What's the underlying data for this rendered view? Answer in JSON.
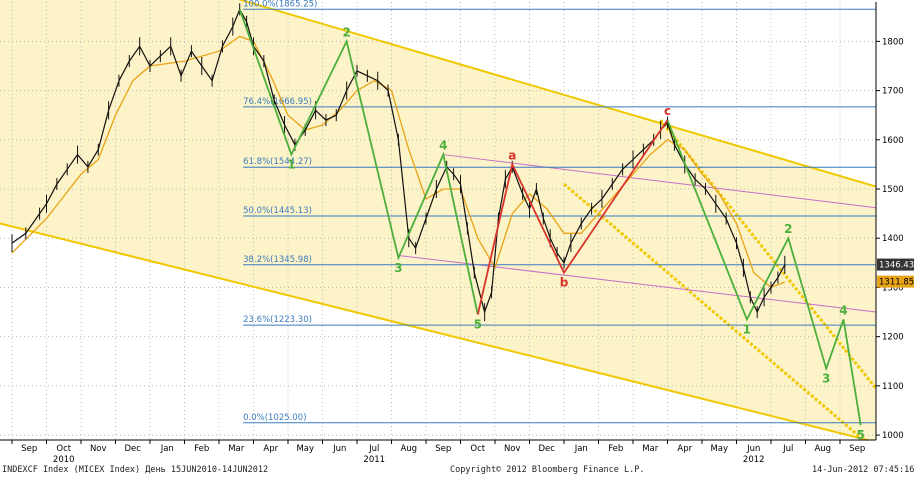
{
  "chart_data": {
    "type": "line",
    "ylim": [
      990,
      1880
    ],
    "y_ticks": [
      1000,
      1100,
      1200,
      1300,
      1400,
      1500,
      1600,
      1700,
      1800
    ],
    "months": [
      "Sep",
      "Oct",
      "Nov",
      "Dec",
      "Jan",
      "Feb",
      "Mar",
      "Apr",
      "May",
      "Jun",
      "Jul",
      "Aug",
      "Sep",
      "Oct",
      "Nov",
      "Dec",
      "Jan",
      "Feb",
      "Mar",
      "Apr",
      "May",
      "Jun",
      "Jul",
      "Aug",
      "Sep"
    ],
    "years": [
      {
        "label": "2010",
        "month_index": 1
      },
      {
        "label": "2011",
        "month_index": 10
      },
      {
        "label": "2012",
        "month_index": 21
      }
    ],
    "fib_levels": [
      {
        "label": "100.0%(1865.25)",
        "value": 1865.25
      },
      {
        "label": "76.4%(1666.95)",
        "value": 1666.95
      },
      {
        "label": "61.8%(1544.27)",
        "value": 1544.27
      },
      {
        "label": "50.0%(1445.13)",
        "value": 1445.13
      },
      {
        "label": "38.2%(1345.98)",
        "value": 1345.98
      },
      {
        "label": "23.6%(1223.30)",
        "value": 1223.3
      },
      {
        "label": "0.0%(1025.00)",
        "value": 1025.0
      }
    ],
    "price": [
      [
        0,
        1390
      ],
      [
        0.4,
        1410
      ],
      [
        0.8,
        1450
      ],
      [
        1.0,
        1470
      ],
      [
        1.3,
        1510
      ],
      [
        1.6,
        1540
      ],
      [
        1.9,
        1570
      ],
      [
        2.2,
        1545
      ],
      [
        2.5,
        1580
      ],
      [
        2.8,
        1660
      ],
      [
        3.1,
        1720
      ],
      [
        3.4,
        1760
      ],
      [
        3.7,
        1790
      ],
      [
        4.0,
        1750
      ],
      [
        4.3,
        1770
      ],
      [
        4.6,
        1790
      ],
      [
        4.9,
        1730
      ],
      [
        5.2,
        1780
      ],
      [
        5.5,
        1750
      ],
      [
        5.8,
        1720
      ],
      [
        6.1,
        1790
      ],
      [
        6.4,
        1830
      ],
      [
        6.6,
        1865
      ],
      [
        6.8,
        1840
      ],
      [
        7.0,
        1790
      ],
      [
        7.3,
        1760
      ],
      [
        7.6,
        1680
      ],
      [
        7.9,
        1630
      ],
      [
        8.2,
        1590
      ],
      [
        8.5,
        1620
      ],
      [
        8.8,
        1660
      ],
      [
        9.1,
        1640
      ],
      [
        9.4,
        1650
      ],
      [
        9.7,
        1700
      ],
      [
        10.0,
        1740
      ],
      [
        10.3,
        1730
      ],
      [
        10.6,
        1720
      ],
      [
        10.9,
        1700
      ],
      [
        11.2,
        1600
      ],
      [
        11.5,
        1400
      ],
      [
        11.7,
        1380
      ],
      [
        12.0,
        1440
      ],
      [
        12.3,
        1500
      ],
      [
        12.6,
        1545
      ],
      [
        12.8,
        1530
      ],
      [
        13.0,
        1510
      ],
      [
        13.2,
        1420
      ],
      [
        13.4,
        1330
      ],
      [
        13.7,
        1250
      ],
      [
        13.9,
        1290
      ],
      [
        14.1,
        1440
      ],
      [
        14.3,
        1520
      ],
      [
        14.5,
        1545
      ],
      [
        14.8,
        1490
      ],
      [
        15.0,
        1460
      ],
      [
        15.2,
        1500
      ],
      [
        15.4,
        1440
      ],
      [
        15.6,
        1400
      ],
      [
        15.8,
        1370
      ],
      [
        16.0,
        1350
      ],
      [
        16.2,
        1390
      ],
      [
        16.5,
        1430
      ],
      [
        16.8,
        1460
      ],
      [
        17.1,
        1480
      ],
      [
        17.4,
        1510
      ],
      [
        17.7,
        1540
      ],
      [
        18.0,
        1560
      ],
      [
        18.3,
        1580
      ],
      [
        18.6,
        1600
      ],
      [
        18.8,
        1620
      ],
      [
        19.0,
        1635
      ],
      [
        19.2,
        1590
      ],
      [
        19.5,
        1550
      ],
      [
        19.8,
        1520
      ],
      [
        20.1,
        1500
      ],
      [
        20.4,
        1470
      ],
      [
        20.7,
        1440
      ],
      [
        21.0,
        1390
      ],
      [
        21.2,
        1340
      ],
      [
        21.4,
        1280
      ],
      [
        21.6,
        1250
      ],
      [
        21.8,
        1280
      ],
      [
        22.0,
        1300
      ],
      [
        22.2,
        1320
      ],
      [
        22.4,
        1346
      ]
    ],
    "ma": [
      [
        0,
        1370
      ],
      [
        1.0,
        1440
      ],
      [
        2.0,
        1530
      ],
      [
        2.5,
        1560
      ],
      [
        3.0,
        1650
      ],
      [
        3.5,
        1720
      ],
      [
        4.0,
        1750
      ],
      [
        5.0,
        1760
      ],
      [
        6.0,
        1780
      ],
      [
        6.6,
        1810
      ],
      [
        7.0,
        1800
      ],
      [
        7.5,
        1730
      ],
      [
        8.0,
        1650
      ],
      [
        8.5,
        1620
      ],
      [
        9.0,
        1630
      ],
      [
        9.5,
        1660
      ],
      [
        10.0,
        1700
      ],
      [
        10.5,
        1720
      ],
      [
        11.0,
        1700
      ],
      [
        11.5,
        1580
      ],
      [
        12.0,
        1480
      ],
      [
        12.5,
        1500
      ],
      [
        13.0,
        1500
      ],
      [
        13.5,
        1400
      ],
      [
        14.0,
        1340
      ],
      [
        14.5,
        1450
      ],
      [
        15.0,
        1490
      ],
      [
        15.5,
        1460
      ],
      [
        16.0,
        1410
      ],
      [
        16.5,
        1410
      ],
      [
        17.0,
        1450
      ],
      [
        17.5,
        1490
      ],
      [
        18.0,
        1530
      ],
      [
        18.5,
        1570
      ],
      [
        19.0,
        1600
      ],
      [
        19.5,
        1580
      ],
      [
        20.0,
        1530
      ],
      [
        20.5,
        1490
      ],
      [
        21.0,
        1430
      ],
      [
        21.5,
        1330
      ],
      [
        22.0,
        1300
      ],
      [
        22.4,
        1311
      ]
    ],
    "green_wave_1": [
      [
        6.6,
        1865
      ],
      [
        8.1,
        1570
      ],
      [
        9.7,
        1800
      ],
      [
        11.2,
        1360
      ],
      [
        12.5,
        1570
      ],
      [
        13.5,
        1245
      ]
    ],
    "green_wave_2": [
      [
        19.0,
        1640
      ],
      [
        21.3,
        1235
      ],
      [
        22.5,
        1400
      ],
      [
        23.6,
        1135
      ],
      [
        24.1,
        1235
      ],
      [
        24.6,
        1020
      ]
    ],
    "red_wave": [
      [
        13.5,
        1245
      ],
      [
        14.5,
        1550
      ],
      [
        16.0,
        1330
      ],
      [
        19.0,
        1640
      ]
    ],
    "wave_labels": [
      {
        "text": "1",
        "x": 8.1,
        "y": 1570,
        "color": "green",
        "pos": "below"
      },
      {
        "text": "2",
        "x": 9.7,
        "y": 1800,
        "color": "green",
        "pos": "above"
      },
      {
        "text": "3",
        "x": 11.2,
        "y": 1360,
        "color": "green",
        "pos": "below"
      },
      {
        "text": "4",
        "x": 12.5,
        "y": 1570,
        "color": "green",
        "pos": "above"
      },
      {
        "text": "5",
        "x": 13.5,
        "y": 1245,
        "color": "green",
        "pos": "below"
      },
      {
        "text": "a",
        "x": 14.5,
        "y": 1550,
        "color": "red",
        "pos": "above"
      },
      {
        "text": "b",
        "x": 16.0,
        "y": 1330,
        "color": "red",
        "pos": "below"
      },
      {
        "text": "c",
        "x": 19.0,
        "y": 1640,
        "color": "red",
        "pos": "above"
      },
      {
        "text": "1",
        "x": 21.3,
        "y": 1235,
        "color": "green",
        "pos": "below"
      },
      {
        "text": "2",
        "x": 22.5,
        "y": 1400,
        "color": "green",
        "pos": "above"
      },
      {
        "text": "3",
        "x": 23.6,
        "y": 1135,
        "color": "green",
        "pos": "below"
      },
      {
        "text": "4",
        "x": 24.1,
        "y": 1235,
        "color": "green",
        "pos": "above"
      },
      {
        "text": "5",
        "x": 24.6,
        "y": 1020,
        "color": "green",
        "pos": "below"
      }
    ],
    "price_tags": [
      {
        "text": "1346.43",
        "value": 1346.43,
        "bg": "#333333",
        "fg": "#ffffff"
      },
      {
        "text": "1311.85",
        "value": 1311.85,
        "bg": "#e8a317",
        "fg": "#000000"
      }
    ],
    "colors": {
      "price": "#111111",
      "ma": "#e8a317",
      "channel": "#f0c800",
      "fill": "#fdf3c8",
      "fib": "#3a7bbf",
      "pink": "#c56ec8",
      "green": "#4caf3c",
      "red": "#d9342b"
    }
  },
  "footer": {
    "left": "INDEXCF Index (MICEX Index) День 15JUN2010-14JUN2012",
    "center": "Copyright© 2012 Bloomberg Finance L.P.",
    "right": "14-Jun-2012 07:45:16"
  }
}
